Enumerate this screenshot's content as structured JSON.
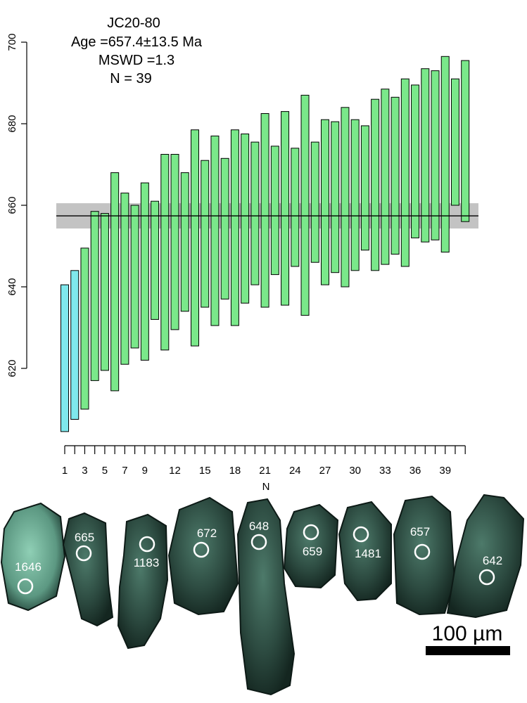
{
  "chart_data": {
    "type": "bar",
    "title": "",
    "xlabel": "N",
    "ylabel": "",
    "ylim": [
      600,
      705
    ],
    "xlim": [
      0.5,
      41
    ],
    "y_ticks": [
      620,
      640,
      660,
      680,
      700
    ],
    "x_ticks": [
      1,
      3,
      5,
      7,
      9,
      12,
      15,
      18,
      21,
      24,
      27,
      30,
      33,
      36,
      39
    ],
    "annotation": {
      "line1": "JC20-80",
      "line2": "Age =657.4±13.5 Ma",
      "line3": "MSWD =1.3",
      "line4": "N = 39"
    },
    "weighted_mean": {
      "value": 657.4,
      "band": [
        654.3,
        660.5
      ]
    },
    "colors": {
      "excluded": "#7fe8ec",
      "included": "#7ae88a",
      "band": "#bcbcbc",
      "stroke": "#000000"
    },
    "series": [
      {
        "x": 1,
        "low": 604.5,
        "high": 640.5,
        "status": "excluded"
      },
      {
        "x": 2,
        "low": 607.5,
        "high": 644.0,
        "status": "excluded"
      },
      {
        "x": 3,
        "low": 610.0,
        "high": 649.5,
        "status": "included"
      },
      {
        "x": 4,
        "low": 617.0,
        "high": 658.5,
        "status": "included"
      },
      {
        "x": 5,
        "low": 619.5,
        "high": 658.0,
        "status": "included"
      },
      {
        "x": 6,
        "low": 614.5,
        "high": 668.0,
        "status": "included"
      },
      {
        "x": 7,
        "low": 621.0,
        "high": 663.0,
        "status": "included"
      },
      {
        "x": 8,
        "low": 625.0,
        "high": 660.0,
        "status": "included"
      },
      {
        "x": 9,
        "low": 622.0,
        "high": 665.5,
        "status": "included"
      },
      {
        "x": 10,
        "low": 632.0,
        "high": 661.0,
        "status": "included"
      },
      {
        "x": 11,
        "low": 624.5,
        "high": 672.5,
        "status": "included"
      },
      {
        "x": 12,
        "low": 629.5,
        "high": 672.5,
        "status": "included"
      },
      {
        "x": 13,
        "low": 634.0,
        "high": 668.0,
        "status": "included"
      },
      {
        "x": 14,
        "low": 625.5,
        "high": 678.5,
        "status": "included"
      },
      {
        "x": 15,
        "low": 635.0,
        "high": 671.0,
        "status": "included"
      },
      {
        "x": 16,
        "low": 630.5,
        "high": 677.0,
        "status": "included"
      },
      {
        "x": 17,
        "low": 637.0,
        "high": 671.5,
        "status": "included"
      },
      {
        "x": 18,
        "low": 630.5,
        "high": 678.5,
        "status": "included"
      },
      {
        "x": 19,
        "low": 636.0,
        "high": 677.5,
        "status": "included"
      },
      {
        "x": 20,
        "low": 640.5,
        "high": 675.5,
        "status": "included"
      },
      {
        "x": 21,
        "low": 635.0,
        "high": 682.5,
        "status": "included"
      },
      {
        "x": 22,
        "low": 643.0,
        "high": 674.5,
        "status": "included"
      },
      {
        "x": 23,
        "low": 635.5,
        "high": 683.0,
        "status": "included"
      },
      {
        "x": 24,
        "low": 645.0,
        "high": 674.0,
        "status": "included"
      },
      {
        "x": 25,
        "low": 633.0,
        "high": 687.0,
        "status": "included"
      },
      {
        "x": 26,
        "low": 646.0,
        "high": 675.5,
        "status": "included"
      },
      {
        "x": 27,
        "low": 640.5,
        "high": 681.0,
        "status": "included"
      },
      {
        "x": 28,
        "low": 643.5,
        "high": 680.5,
        "status": "included"
      },
      {
        "x": 29,
        "low": 640.0,
        "high": 684.0,
        "status": "included"
      },
      {
        "x": 30,
        "low": 644.0,
        "high": 681.0,
        "status": "included"
      },
      {
        "x": 31,
        "low": 649.0,
        "high": 679.5,
        "status": "included"
      },
      {
        "x": 32,
        "low": 644.0,
        "high": 686.0,
        "status": "included"
      },
      {
        "x": 33,
        "low": 645.5,
        "high": 688.5,
        "status": "included"
      },
      {
        "x": 34,
        "low": 648.0,
        "high": 686.5,
        "status": "included"
      },
      {
        "x": 35,
        "low": 645.0,
        "high": 691.0,
        "status": "included"
      },
      {
        "x": 36,
        "low": 652.0,
        "high": 689.5,
        "status": "included"
      },
      {
        "x": 37,
        "low": 651.0,
        "high": 693.5,
        "status": "included"
      },
      {
        "x": 38,
        "low": 651.5,
        "high": 693.0,
        "status": "included"
      },
      {
        "x": 39,
        "low": 648.5,
        "high": 696.5,
        "status": "included"
      },
      {
        "x": 40,
        "low": 660.0,
        "high": 691.0,
        "status": "included"
      },
      {
        "x": 41,
        "low": 656.0,
        "high": 695.5,
        "status": "included"
      }
    ]
  },
  "grains": [
    {
      "label": "1646"
    },
    {
      "label": "665"
    },
    {
      "label": "1183"
    },
    {
      "label": "672"
    },
    {
      "label": "648"
    },
    {
      "label": "659"
    },
    {
      "label": "1481"
    },
    {
      "label": "657"
    },
    {
      "label": "642"
    }
  ],
  "scale_bar": {
    "label": "100 µm"
  }
}
